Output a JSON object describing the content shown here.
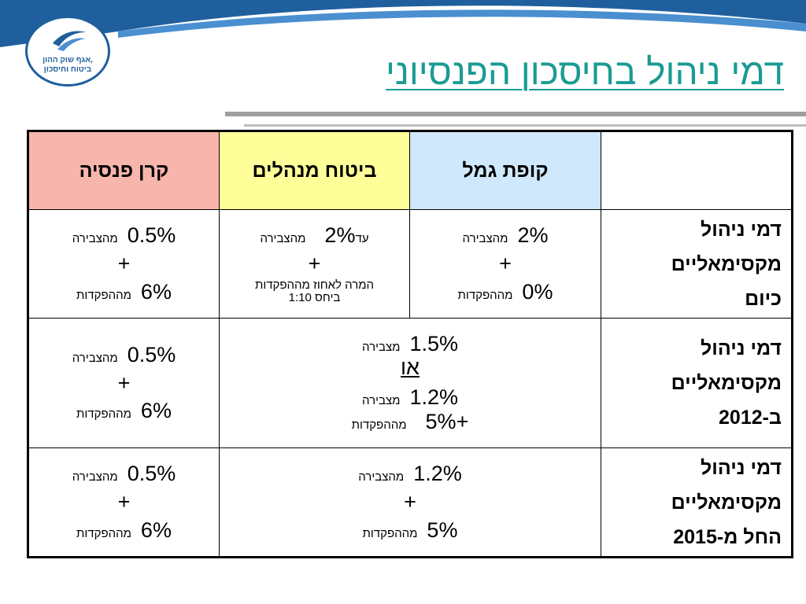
{
  "title": "דמי ניהול בחיסכון הפנסיוני",
  "logo": {
    "line1": "אגף שוק ההון,",
    "line2": "ביטוח וחיסכון"
  },
  "colors": {
    "kupat": "#cfe8fb",
    "bituach": "#ffff99",
    "keren": "#f8b5ab",
    "title": "#1a9b93"
  },
  "headers": {
    "kupat": "קופת גמל",
    "bituach": "ביטוח מנהלים",
    "keren": "קרן פנסיה"
  },
  "rows": {
    "r1": {
      "head": [
        "דמי ניהול",
        "מקסימאליים",
        "כיום"
      ],
      "kupat": {
        "v1": "2%",
        "l1": "מהצבירה",
        "plus": "+",
        "v2": "0%",
        "l2": "מההפקדות"
      },
      "bituach": {
        "pre": "עד",
        "v1": "2%",
        "l1": "מהצבירה",
        "plus": "+",
        "note1": "המרה לאחוז מההפקדות",
        "note2": "ביחס 1:10"
      },
      "keren": {
        "v1": "0.5%",
        "l1": "מהצבירה",
        "plus": "+",
        "v2": "6%",
        "l2": "מההפקדות"
      }
    },
    "r2": {
      "head": [
        "דמי ניהול",
        "מקסימאליים",
        "ב-2012"
      ],
      "merged": {
        "v1": "1.5%",
        "l1": "מצבירה",
        "or": "או",
        "v2": "1.2%",
        "l2": "מצבירה",
        "plus": "+",
        "v3": "5%",
        "l3": "מההפקדות"
      },
      "keren": {
        "v1": "0.5%",
        "l1": "מהצבירה",
        "plus": "+",
        "v2": "6%",
        "l2": "מההפקדות"
      }
    },
    "r3": {
      "head": [
        "דמי ניהול",
        "מקסימאליים",
        "החל מ-2015"
      ],
      "merged": {
        "v1": "1.2%",
        "l1": "מהצבירה",
        "plus": "+",
        "v2": "5%",
        "l2": "מההפקדות"
      },
      "keren": {
        "v1": "0.5%",
        "l1": "מהצבירה",
        "plus": "+",
        "v2": "6%",
        "l2": "מההפקדות"
      }
    }
  }
}
